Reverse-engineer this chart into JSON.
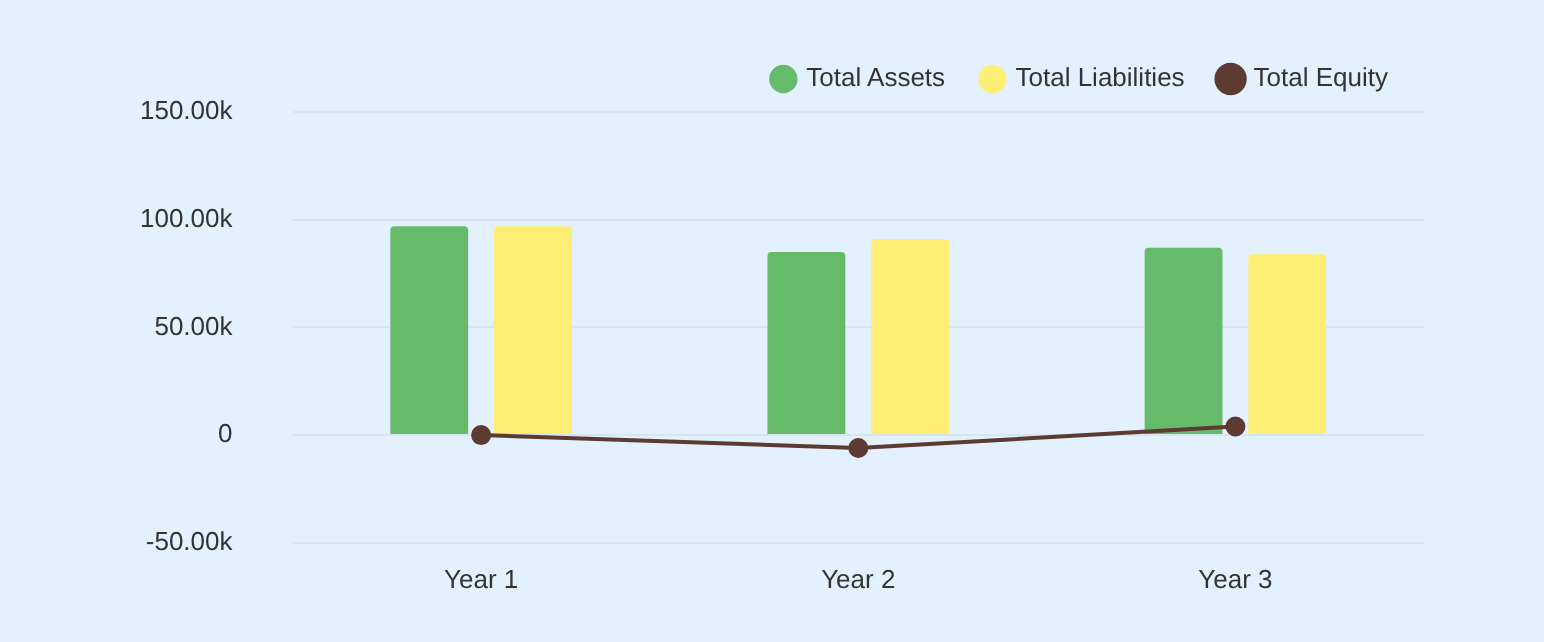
{
  "chart_data": {
    "type": "bar",
    "categories": [
      "Year 1",
      "Year 2",
      "Year 3"
    ],
    "series": [
      {
        "name": "Total Assets",
        "color": "#66bb6a",
        "values": [
          97000,
          85000,
          87000
        ]
      },
      {
        "name": "Total Liabilities",
        "color": "#ffee75",
        "values": [
          97000,
          91000,
          84000
        ]
      },
      {
        "name": "Total Equity",
        "type": "line",
        "color": "#5d3a32",
        "values": [
          0,
          -6000,
          4000
        ]
      }
    ],
    "ylim": [
      -50000,
      150000
    ],
    "yticks": [
      {
        "value": -50000,
        "label": "-50.00k"
      },
      {
        "value": 0,
        "label": "0"
      },
      {
        "value": 50000,
        "label": "50.00k"
      },
      {
        "value": 100000,
        "label": "100.00k"
      },
      {
        "value": 150000,
        "label": "150.00k"
      }
    ],
    "grid": "y",
    "legend": "top right",
    "marker": "circle"
  }
}
